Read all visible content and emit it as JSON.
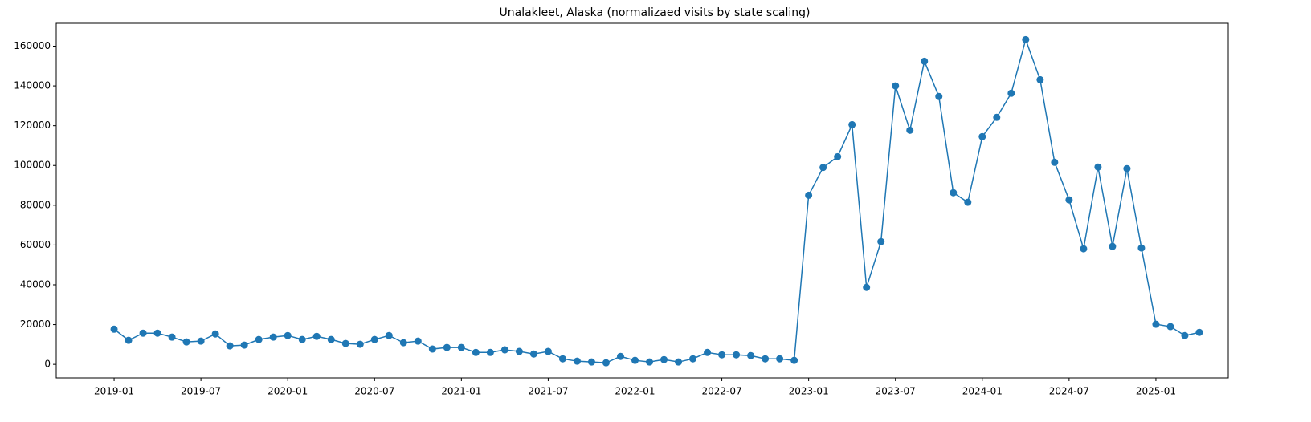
{
  "chart_data": {
    "type": "line",
    "title": "Unalakleet, Alaska (normalizaed visits by state scaling)",
    "x": [
      "2019-01",
      "2019-02",
      "2019-03",
      "2019-04",
      "2019-05",
      "2019-06",
      "2019-07",
      "2019-08",
      "2019-09",
      "2019-10",
      "2019-11",
      "2019-12",
      "2020-01",
      "2020-02",
      "2020-03",
      "2020-04",
      "2020-05",
      "2020-06",
      "2020-07",
      "2020-08",
      "2020-09",
      "2020-10",
      "2020-11",
      "2020-12",
      "2021-01",
      "2021-02",
      "2021-03",
      "2021-04",
      "2021-05",
      "2021-06",
      "2021-07",
      "2021-08",
      "2021-09",
      "2021-10",
      "2021-11",
      "2021-12",
      "2022-01",
      "2022-02",
      "2022-03",
      "2022-04",
      "2022-05",
      "2022-06",
      "2022-07",
      "2022-08",
      "2022-09",
      "2022-10",
      "2022-11",
      "2022-12",
      "2023-01",
      "2023-02",
      "2023-03",
      "2023-04",
      "2023-05",
      "2023-06",
      "2023-07",
      "2023-08",
      "2023-09",
      "2023-10",
      "2023-11",
      "2023-12",
      "2024-01",
      "2024-02",
      "2024-03",
      "2024-04",
      "2024-05",
      "2024-06",
      "2024-07",
      "2024-08",
      "2024-09",
      "2024-10",
      "2024-11",
      "2024-12",
      "2025-01",
      "2025-02",
      "2025-03",
      "2025-04"
    ],
    "series": [
      {
        "color": "#1f77b4",
        "values": [
          17700,
          12100,
          15700,
          15700,
          13700,
          11300,
          11700,
          15300,
          9300,
          9700,
          12500,
          13700,
          14500,
          12500,
          14100,
          12500,
          10500,
          10100,
          12500,
          14500,
          10900,
          11700,
          7700,
          8500,
          8500,
          6000,
          6000,
          7300,
          6500,
          5200,
          6500,
          2800,
          1600,
          1200,
          800,
          4000,
          2000,
          1200,
          2400,
          1200,
          2800,
          6000,
          4800,
          4800,
          4400,
          2800,
          2800,
          2000,
          85000,
          99000,
          104400,
          120500,
          38700,
          61700,
          140000,
          117700,
          152400,
          134700,
          86300,
          81500,
          114500,
          124200,
          136300,
          163300,
          143100,
          101600,
          82700,
          58100,
          99200,
          59300,
          98400,
          58500,
          20200,
          19000,
          14500,
          16100
        ]
      }
    ],
    "xlim": [
      "2018-09",
      "2025-06"
    ],
    "xticks": [
      "2019-01",
      "2019-07",
      "2020-01",
      "2020-07",
      "2021-01",
      "2021-07",
      "2022-01",
      "2022-07",
      "2023-01",
      "2023-07",
      "2024-01",
      "2024-07",
      "2025-01"
    ],
    "ylim": [
      -6800,
      171500
    ],
    "yticks": [
      0,
      20000,
      40000,
      60000,
      80000,
      100000,
      120000,
      140000,
      160000
    ],
    "grid": false,
    "markers": true
  }
}
